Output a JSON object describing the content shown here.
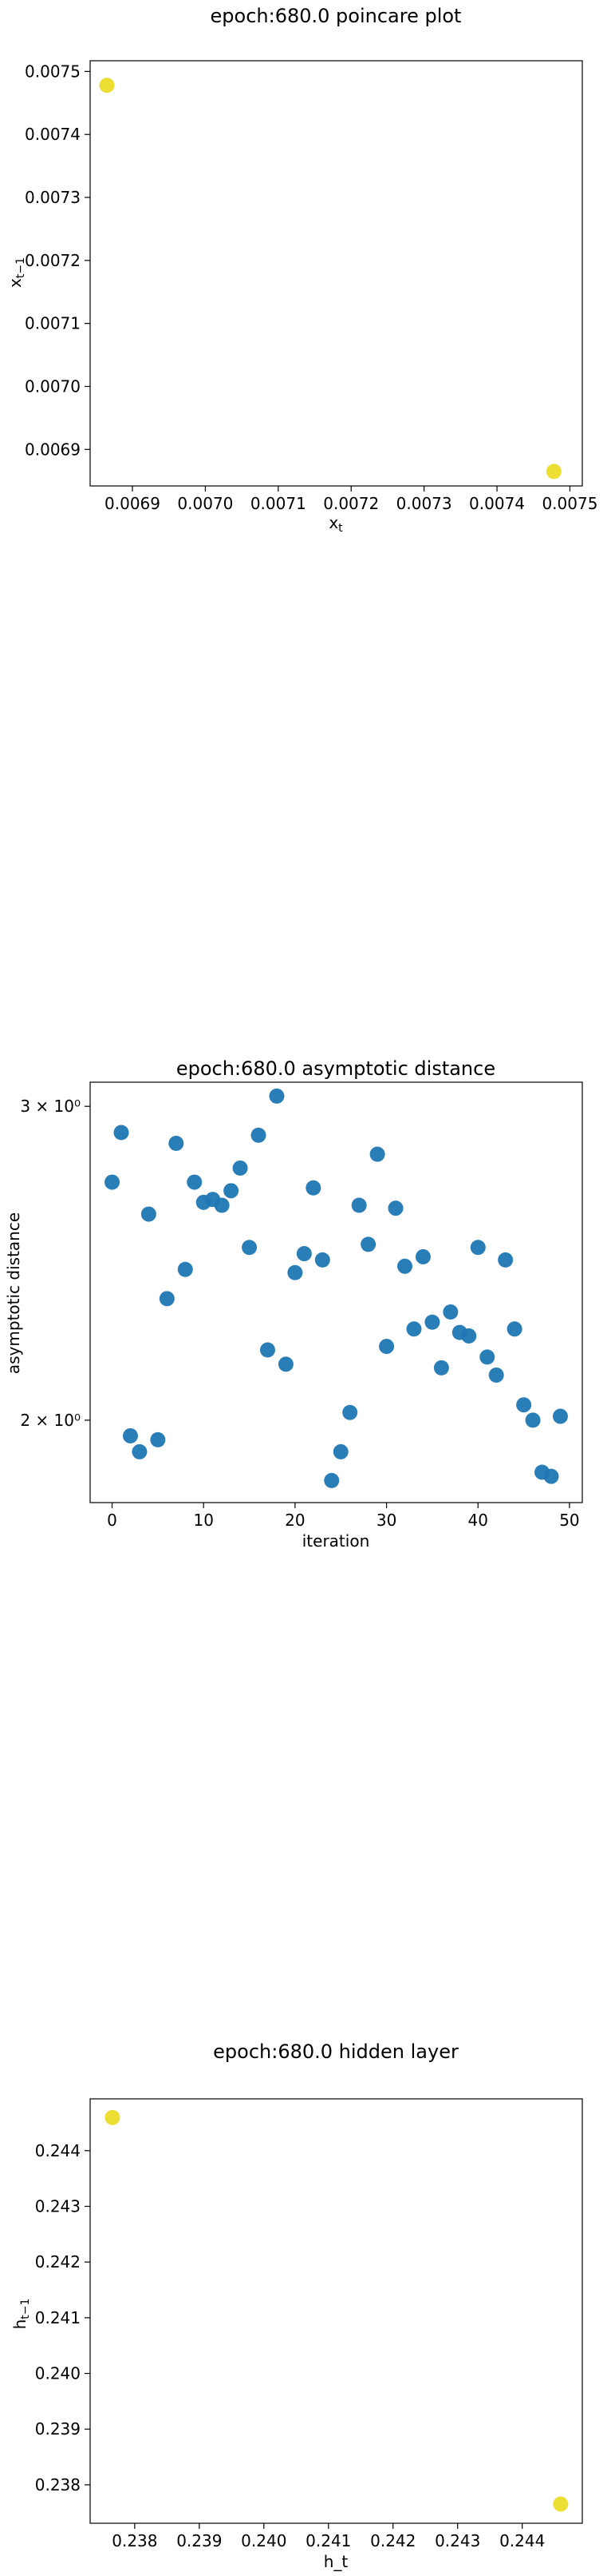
{
  "chart_data": [
    {
      "type": "scatter",
      "title": "epoch:680.0 poincare plot",
      "xlabel": "x_t",
      "ylabel": "x_{t-1}",
      "xlim": [
        0.006842,
        0.007517
      ],
      "ylim": [
        0.006842,
        0.007517
      ],
      "xticks": [
        "0.0069",
        "0.0070",
        "0.0071",
        "0.0072",
        "0.0073",
        "0.0074",
        "0.0075"
      ],
      "xtick_values": [
        0.0069,
        0.007,
        0.0071,
        0.0072,
        0.0073,
        0.0074,
        0.0075
      ],
      "yticks": [
        "0.0069",
        "0.0070",
        "0.0071",
        "0.0072",
        "0.0073",
        "0.0074",
        "0.0075"
      ],
      "ytick_values": [
        0.0069,
        0.007,
        0.0071,
        0.0072,
        0.0073,
        0.0074,
        0.0075
      ],
      "color": "#ebdc28",
      "x": [
        0.006865,
        0.007478
      ],
      "y": [
        0.007478,
        0.006865
      ],
      "grid": false
    },
    {
      "type": "scatter",
      "title": "epoch:680.0 asymptotic distance",
      "xlabel": "iteration",
      "ylabel": "asymptotic distance",
      "yscale": "log",
      "xlim": [
        -2.4,
        51.4
      ],
      "ylim": [
        1.798,
        3.095
      ],
      "xticks": [
        "0",
        "10",
        "20",
        "30",
        "40",
        "50"
      ],
      "xtick_values": [
        0,
        10,
        20,
        30,
        40,
        50
      ],
      "yticks": [
        "2 × 10⁰",
        "3 × 10⁰"
      ],
      "ytick_values": [
        2,
        3
      ],
      "color": "#1f77b4",
      "x": [
        0,
        1,
        2,
        3,
        4,
        5,
        6,
        7,
        8,
        9,
        10,
        11,
        12,
        13,
        14,
        15,
        16,
        17,
        18,
        19,
        20,
        21,
        22,
        23,
        24,
        25,
        26,
        27,
        28,
        29,
        30,
        31,
        32,
        33,
        34,
        35,
        36,
        37,
        38,
        39,
        40,
        41,
        42,
        43,
        44,
        45,
        46,
        47,
        48,
        49
      ],
      "y": [
        2.72,
        2.9,
        1.96,
        1.92,
        2.61,
        1.95,
        2.34,
        2.86,
        2.43,
        2.72,
        2.65,
        2.66,
        2.64,
        2.69,
        2.77,
        2.5,
        2.89,
        2.19,
        3.04,
        2.15,
        2.42,
        2.48,
        2.7,
        2.46,
        1.85,
        1.92,
        2.02,
        2.64,
        2.51,
        2.82,
        2.2,
        2.63,
        2.44,
        2.25,
        2.47,
        2.27,
        2.14,
        2.3,
        2.24,
        2.23,
        2.5,
        2.17,
        2.12,
        2.46,
        2.25,
        2.04,
        2.0,
        1.87,
        1.86,
        2.01
      ],
      "grid": false
    },
    {
      "type": "scatter",
      "title": "epoch:680.0 hidden layer",
      "xlabel": "h_t",
      "ylabel": "h_{t-1}",
      "xlim": [
        0.23731,
        0.24493
      ],
      "ylim": [
        0.23731,
        0.24493
      ],
      "xticks": [
        "0.238",
        "0.239",
        "0.240",
        "0.241",
        "0.242",
        "0.243",
        "0.244"
      ],
      "xtick_values": [
        0.238,
        0.239,
        0.24,
        0.241,
        0.242,
        0.243,
        0.244
      ],
      "yticks": [
        "0.238",
        "0.239",
        "0.240",
        "0.241",
        "0.242",
        "0.243",
        "0.244"
      ],
      "ytick_values": [
        0.238,
        0.239,
        0.24,
        0.241,
        0.242,
        0.243,
        0.244
      ],
      "color": "#ebdc28",
      "x": [
        0.237655,
        0.244595
      ],
      "y": [
        0.244595,
        0.237655
      ],
      "grid": false
    }
  ]
}
